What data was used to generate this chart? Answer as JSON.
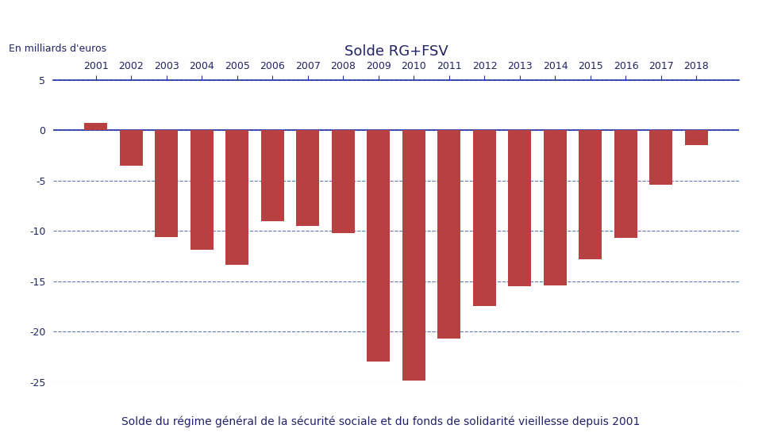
{
  "years": [
    2001,
    2002,
    2003,
    2004,
    2005,
    2006,
    2007,
    2008,
    2009,
    2010,
    2011,
    2012,
    2013,
    2014,
    2015,
    2016,
    2017,
    2018
  ],
  "values": [
    0.7,
    -3.5,
    -10.6,
    -11.9,
    -13.4,
    -9.0,
    -9.5,
    -10.2,
    -23.0,
    -24.9,
    -20.7,
    -17.5,
    -15.5,
    -15.4,
    -12.8,
    -10.7,
    -5.4,
    -1.5
  ],
  "bar_color": "#b84040",
  "title": "Solde RG+FSV",
  "ylabel": "En milliards d'euros",
  "ylim": [
    -25,
    5
  ],
  "yticks": [
    -25,
    -20,
    -15,
    -10,
    -5,
    0,
    5
  ],
  "bg_color": "#ffffff",
  "grid_color": "#3355aa",
  "axis_color": "#2233aa",
  "title_fontsize": 13,
  "ylabel_fontsize": 9,
  "tick_fontsize": 9,
  "caption": "Solde du régime général de la sécurité sociale et du fonds de solidarité vieillesse depuis 2001"
}
